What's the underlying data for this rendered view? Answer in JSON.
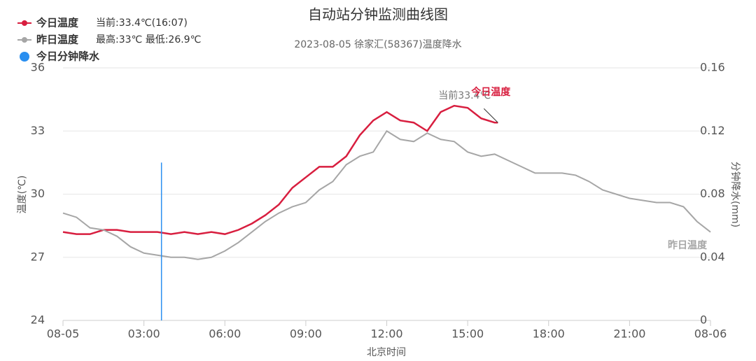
{
  "chart_data": {
    "type": "line",
    "title": "自动站分钟监测曲线图",
    "subtitle": "2023-08-05 徐家汇(58367)温度降水",
    "x_label": "北京时间",
    "y_label": "温度(℃)",
    "y2_label": "分钟降水(mm)",
    "current_label": "当前33.4℃",
    "xlim": [
      0,
      24
    ],
    "xticks": [
      {
        "value": 0,
        "label": "08-05"
      },
      {
        "value": 3,
        "label": "03:00"
      },
      {
        "value": 6,
        "label": "06:00"
      },
      {
        "value": 9,
        "label": "09:00"
      },
      {
        "value": 12,
        "label": "12:00"
      },
      {
        "value": 15,
        "label": "15:00"
      },
      {
        "value": 18,
        "label": "18:00"
      },
      {
        "value": 21,
        "label": "21:00"
      },
      {
        "value": 24,
        "label": "08-06"
      }
    ],
    "ylim": [
      24,
      36
    ],
    "yticks": [
      24,
      27,
      30,
      33,
      36
    ],
    "y2lim": [
      0,
      0.16
    ],
    "y2ticks": [
      0,
      0.04,
      0.08,
      0.12,
      0.16
    ],
    "grid": true,
    "series": [
      {
        "name": "今日温度",
        "legend_note": "当前:33.4℃(16:07)",
        "end_label": "今日温度",
        "color": "#d81e3f",
        "x": [
          0,
          0.5,
          1,
          1.5,
          2,
          2.5,
          3,
          3.5,
          4,
          4.5,
          5,
          5.5,
          6,
          6.5,
          7,
          7.5,
          8,
          8.5,
          9,
          9.5,
          10,
          10.5,
          11,
          11.5,
          12,
          12.5,
          13,
          13.5,
          14,
          14.5,
          15,
          15.5,
          16,
          16.12
        ],
        "values": [
          28.2,
          28.1,
          28.1,
          28.3,
          28.3,
          28.2,
          28.2,
          28.2,
          28.1,
          28.2,
          28.1,
          28.2,
          28.1,
          28.3,
          28.6,
          29.0,
          29.5,
          30.3,
          30.8,
          31.3,
          31.3,
          31.8,
          32.8,
          33.5,
          33.9,
          33.5,
          33.4,
          33.0,
          33.9,
          34.2,
          34.1,
          33.6,
          33.4,
          33.4
        ]
      },
      {
        "name": "昨日温度",
        "legend_note": "最高:33℃ 最低:26.9℃",
        "end_label": "昨日温度",
        "color": "#a6a6a6",
        "x": [
          0,
          0.5,
          1,
          1.5,
          2,
          2.5,
          3,
          3.5,
          4,
          4.5,
          5,
          5.5,
          6,
          6.5,
          7,
          7.5,
          8,
          8.5,
          9,
          9.5,
          10,
          10.5,
          11,
          11.5,
          12,
          12.5,
          13,
          13.5,
          14,
          14.5,
          15,
          15.5,
          16,
          16.5,
          17,
          17.5,
          18,
          18.5,
          19,
          19.5,
          20,
          20.5,
          21,
          21.5,
          22,
          22.5,
          23,
          23.5,
          24
        ],
        "values": [
          29.1,
          28.9,
          28.4,
          28.3,
          28.0,
          27.5,
          27.2,
          27.1,
          27.0,
          27.0,
          26.9,
          27.0,
          27.3,
          27.7,
          28.2,
          28.7,
          29.1,
          29.4,
          29.6,
          30.2,
          30.6,
          31.4,
          31.8,
          32.0,
          33.0,
          32.6,
          32.5,
          32.9,
          32.6,
          32.5,
          32.0,
          31.8,
          31.9,
          31.6,
          31.3,
          31.0,
          31.0,
          31.0,
          30.9,
          30.6,
          30.2,
          30.0,
          29.8,
          29.7,
          29.6,
          29.6,
          29.4,
          28.7,
          28.2
        ]
      },
      {
        "name": "今日分钟降水",
        "color": "#2a8ff0",
        "axis": "y2",
        "x": [
          3.65
        ],
        "values": [
          0.1
        ]
      }
    ]
  }
}
